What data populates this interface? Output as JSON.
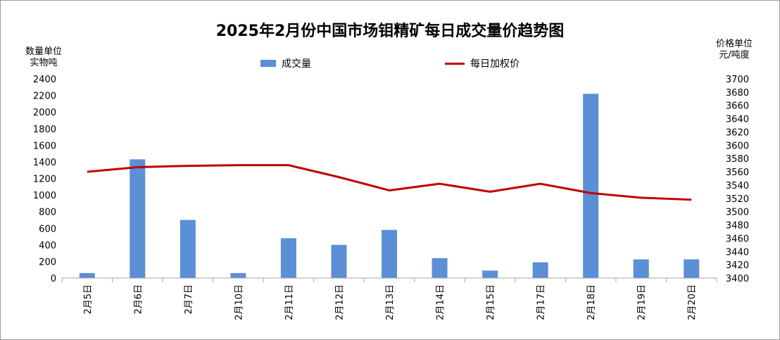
{
  "chart_data": {
    "type": "bar",
    "title": "2025年2月份中国市场钼精矿每日成交量价趋势图",
    "left_axis_label": [
      "数量单位",
      "实物吨"
    ],
    "right_axis_label": [
      "价格单位",
      "元/吨度"
    ],
    "categories": [
      "2月5日",
      "2月6日",
      "2月7日",
      "2月10日",
      "2月11日",
      "2月12日",
      "2月13日",
      "2月14日",
      "2月15日",
      "2月17日",
      "2月18日",
      "2月19日",
      "2月20日"
    ],
    "series": [
      {
        "name": "成交量",
        "type": "bar",
        "axis": "left",
        "color": "#5b8fd6",
        "values": [
          60,
          1430,
          700,
          60,
          480,
          400,
          580,
          240,
          90,
          190,
          2220,
          225,
          225
        ]
      },
      {
        "name": "每日加权价",
        "type": "line",
        "axis": "right",
        "color": "#c00000",
        "values": [
          3560,
          3567,
          3569,
          3570,
          3570,
          3552,
          3532,
          3542,
          3530,
          3542,
          3528,
          3521,
          3518
        ]
      }
    ],
    "left_axis": {
      "min": 0,
      "max": 2400,
      "step": 200
    },
    "right_axis": {
      "min": 3400,
      "max": 3700,
      "step": 20
    },
    "grid": false,
    "legend_position": "top"
  }
}
